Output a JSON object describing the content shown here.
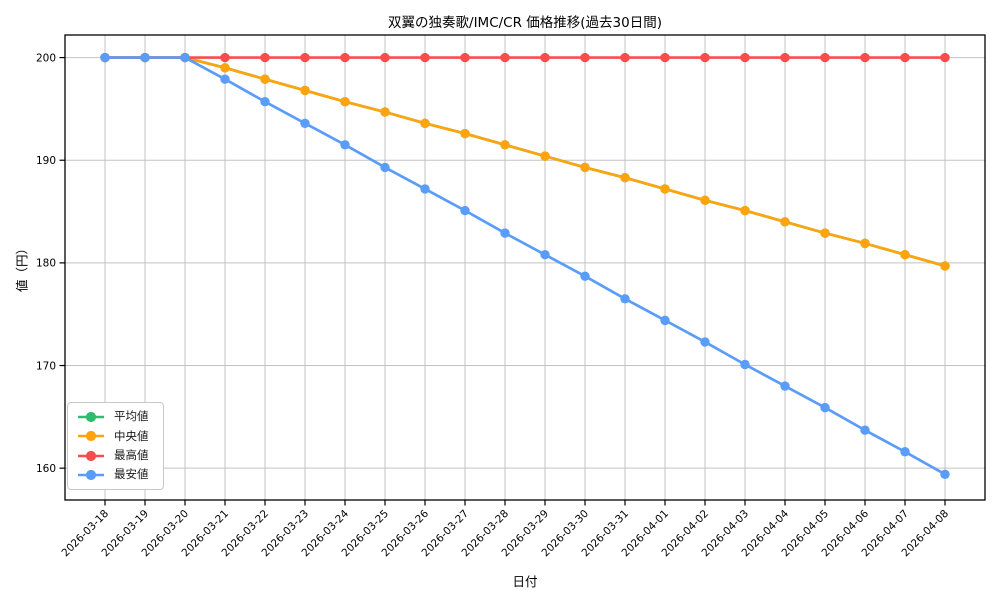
{
  "chart_data": {
    "type": "line",
    "title": "双翼の独奏歌/IMC/CR 価格推移(過去30日間)",
    "xlabel": "日付",
    "ylabel": "値（円）",
    "x": [
      "2026-03-18",
      "2026-03-19",
      "2026-03-20",
      "2026-03-21",
      "2026-03-22",
      "2026-03-23",
      "2026-03-24",
      "2026-03-25",
      "2026-03-26",
      "2026-03-27",
      "2026-03-28",
      "2026-03-29",
      "2026-03-30",
      "2026-03-31",
      "2026-04-01",
      "2026-04-02",
      "2026-04-03",
      "2026-04-04",
      "2026-04-05",
      "2026-04-06",
      "2026-04-07",
      "2026-04-08"
    ],
    "yticks": [
      160,
      170,
      180,
      190,
      200
    ],
    "ylim": [
      156.9,
      202.2
    ],
    "grid": true,
    "legend_position": "lower left",
    "series": [
      {
        "key": "average",
        "name": "平均値",
        "color": "#2ebd6c",
        "values": [
          200,
          200,
          200,
          199.0,
          197.9,
          196.8,
          195.7,
          194.7,
          193.6,
          192.6,
          191.5,
          190.4,
          189.3,
          188.3,
          187.2,
          186.1,
          185.1,
          184.0,
          182.9,
          181.9,
          180.8,
          179.7
        ]
      },
      {
        "key": "median",
        "name": "中央値",
        "color": "#ffa40e",
        "values": [
          200,
          200,
          200,
          199.0,
          197.9,
          196.8,
          195.7,
          194.7,
          193.6,
          192.6,
          191.5,
          190.4,
          189.3,
          188.3,
          187.2,
          186.1,
          185.1,
          184.0,
          182.9,
          181.9,
          180.8,
          179.7
        ]
      },
      {
        "key": "max",
        "name": "最高値",
        "color": "#f94d4d",
        "values": [
          200,
          200,
          200,
          200,
          200,
          200,
          200,
          200,
          200,
          200,
          200,
          200,
          200,
          200,
          200,
          200,
          200,
          200,
          200,
          200,
          200,
          200
        ]
      },
      {
        "key": "min",
        "name": "最安値",
        "color": "#5a9df8",
        "values": [
          200,
          200,
          200,
          197.9,
          195.7,
          193.6,
          191.5,
          189.3,
          187.2,
          185.1,
          182.9,
          180.8,
          178.7,
          176.5,
          174.4,
          172.3,
          170.1,
          168.0,
          165.9,
          163.7,
          161.6,
          159.4
        ]
      }
    ]
  }
}
